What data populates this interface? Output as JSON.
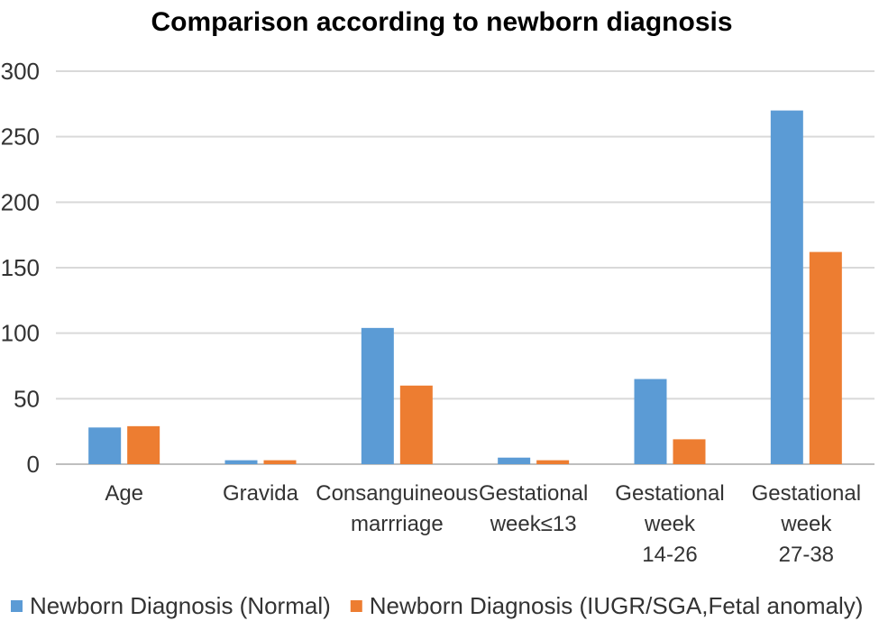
{
  "chart_data": {
    "type": "bar",
    "title": "Comparison according to newborn diagnosis",
    "categories": [
      [
        "Age"
      ],
      [
        "Gravida"
      ],
      [
        "Consanguineous",
        "marrriage"
      ],
      [
        "Gestational",
        "week≤13"
      ],
      [
        "Gestational",
        "week",
        "14-26"
      ],
      [
        "Gestational",
        "week",
        "27-38"
      ]
    ],
    "series": [
      {
        "name": "Newborn Diagnosis (Normal)",
        "color": "#5B9BD5",
        "values": [
          28,
          3,
          104,
          5,
          65,
          270
        ]
      },
      {
        "name": "Newborn Diagnosis (IUGR/SGA,Fetal anomaly)",
        "color": "#ED7D31",
        "values": [
          29,
          3,
          60,
          3,
          19,
          162
        ]
      }
    ],
    "yticks": [
      0,
      50,
      100,
      150,
      200,
      250,
      300
    ],
    "ylim": [
      0,
      300
    ],
    "grid": true,
    "legend_position": "bottom"
  }
}
